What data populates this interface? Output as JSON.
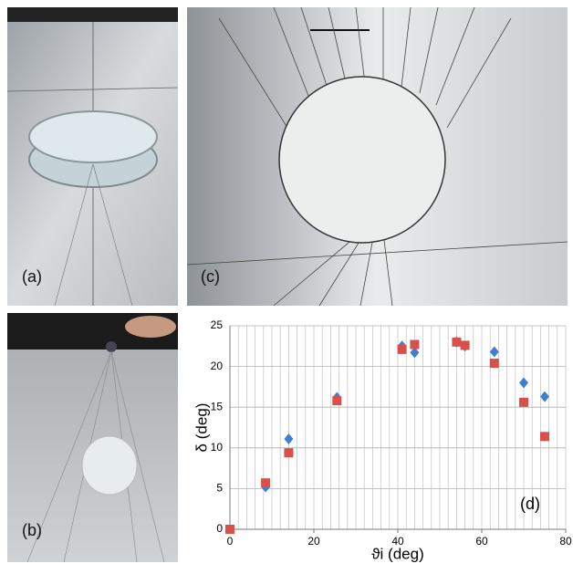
{
  "panels": {
    "a": "(a)",
    "b": "(b)",
    "c": "(c)"
  },
  "chart_data": {
    "type": "scatter",
    "x_label": "ϑi (deg)",
    "y_label": "δ (deg)",
    "annotation": "(d)",
    "xlim": [
      0,
      80
    ],
    "ylim": [
      0,
      25
    ],
    "xticks": [
      0,
      20,
      40,
      60,
      80
    ],
    "yticks": [
      0,
      5,
      10,
      15,
      20,
      25
    ],
    "xminorticks": [
      0,
      2,
      4,
      6,
      8,
      10,
      12,
      14,
      16,
      18,
      20,
      22,
      24,
      26,
      28,
      30,
      32,
      34,
      36,
      38,
      40,
      42,
      44,
      46,
      48,
      50,
      52,
      54,
      56,
      58,
      60,
      62,
      64,
      66,
      68,
      70,
      72,
      74,
      76,
      78,
      80
    ],
    "grid": true,
    "series": [
      {
        "color": "#3f7fd0",
        "marker": "diamond",
        "x": [
          8.5,
          14,
          25.5,
          41,
          44,
          54,
          56,
          63,
          70,
          75
        ],
        "values": [
          5.2,
          11.1,
          16.2,
          22.5,
          21.7,
          23,
          22.5,
          21.8,
          18,
          16.3
        ]
      },
      {
        "color": "#d9504a",
        "marker": "square",
        "x": [
          0,
          8.5,
          14,
          25.5,
          41,
          44,
          54,
          56,
          63,
          70,
          75
        ],
        "values": [
          0,
          5.7,
          9.4,
          15.8,
          22.1,
          22.7,
          23,
          22.6,
          20.4,
          15.6,
          11.4
        ]
      }
    ]
  }
}
